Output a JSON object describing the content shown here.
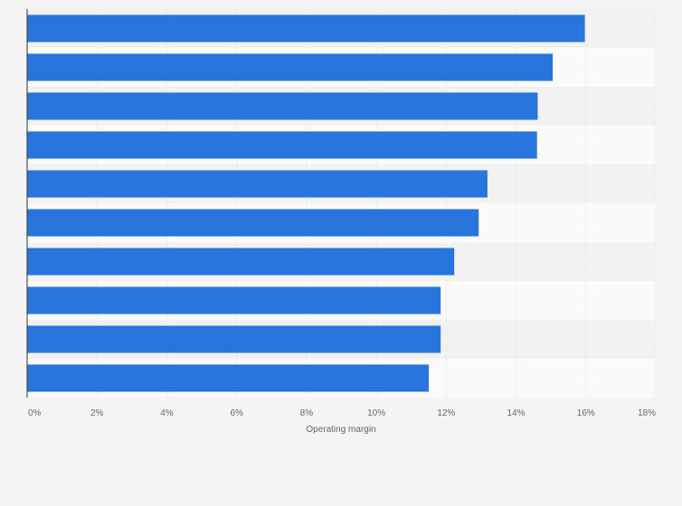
{
  "chart_data": {
    "type": "bar",
    "orientation": "horizontal",
    "values": [
      15.97,
      15.05,
      14.62,
      14.6,
      13.18,
      12.93,
      12.23,
      11.84,
      11.84,
      11.5
    ],
    "xlabel": "Operating margin",
    "xlim": [
      0,
      18
    ],
    "x_ticks": [
      "0%",
      "2%",
      "4%",
      "6%",
      "8%",
      "10%",
      "12%",
      "14%",
      "16%",
      "18%"
    ],
    "grid": true,
    "bar_color": "#2876dd"
  }
}
